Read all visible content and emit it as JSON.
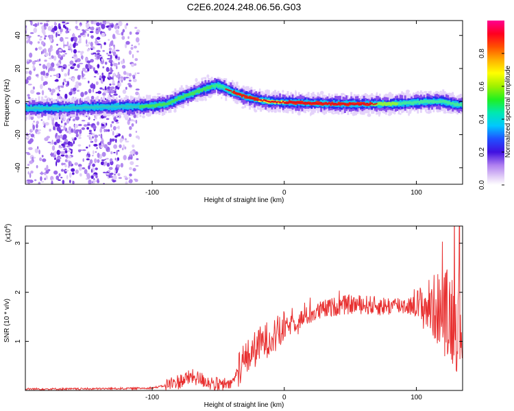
{
  "title": "C2E6.2024.248.06.56.G03",
  "chart_data": [
    {
      "type": "heatmap",
      "xlabel": "Height of straight line (km)",
      "ylabel": "Frequency (Hz)",
      "xlim": [
        -196,
        135
      ],
      "ylim": [
        -50,
        49
      ],
      "xticks": [
        -100,
        0,
        100
      ],
      "yticks": [
        -40,
        -20,
        0,
        20,
        40
      ],
      "ridge": {
        "x": [
          -196,
          -170,
          -150,
          -130,
          -120,
          -110,
          -100,
          -90,
          -80,
          -70,
          -60,
          -52,
          -48,
          -40,
          -30,
          -20,
          -10,
          0,
          20,
          40,
          60,
          80,
          90,
          100,
          110,
          120,
          130,
          135
        ],
        "y": [
          -4,
          -4,
          -3.5,
          -3,
          -3,
          -3,
          -2.5,
          -1.5,
          2,
          5,
          8,
          10,
          9,
          6,
          3,
          1,
          0,
          -0.5,
          -1,
          -1.5,
          -1.5,
          -1.5,
          -1,
          -0.5,
          0,
          0,
          -2,
          -2
        ]
      },
      "colorbar": {
        "label": "Normalized spectral amplitude",
        "range": [
          0,
          1
        ],
        "ticks": [
          "0.0",
          "0.2",
          "0.4",
          "0.6",
          "0.8"
        ]
      }
    },
    {
      "type": "line",
      "xlabel": "Height of straight line (km)",
      "ylabel": "SNR (10 * v/v)",
      "multiplier": "(x10",
      "multiplier_exp": "4",
      "xlim": [
        -196,
        135
      ],
      "ylim": [
        0,
        3.35
      ],
      "xticks": [
        -100,
        0,
        100
      ],
      "yticks": [
        1,
        2,
        3
      ],
      "series": [
        {
          "color": "#e83030",
          "x": [
            -196,
            -160,
            -120,
            -100,
            -90,
            -80,
            -70,
            -60,
            -50,
            -40,
            -36,
            -34,
            -30,
            -25,
            -20,
            -15,
            -10,
            -5,
            0,
            10,
            20,
            30,
            40,
            50,
            60,
            70,
            80,
            90,
            100,
            110,
            115,
            120,
            125,
            130,
            135
          ],
          "y": [
            0.03,
            0.03,
            0.04,
            0.05,
            0.1,
            0.18,
            0.28,
            0.2,
            0.1,
            0.12,
            0.35,
            0.5,
            0.6,
            0.75,
            0.9,
            1.0,
            1.1,
            1.15,
            1.25,
            1.42,
            1.55,
            1.65,
            1.72,
            1.75,
            1.75,
            1.72,
            1.72,
            1.74,
            1.72,
            1.7,
            1.68,
            1.6,
            1.55,
            1.5,
            1.5
          ]
        }
      ]
    }
  ]
}
